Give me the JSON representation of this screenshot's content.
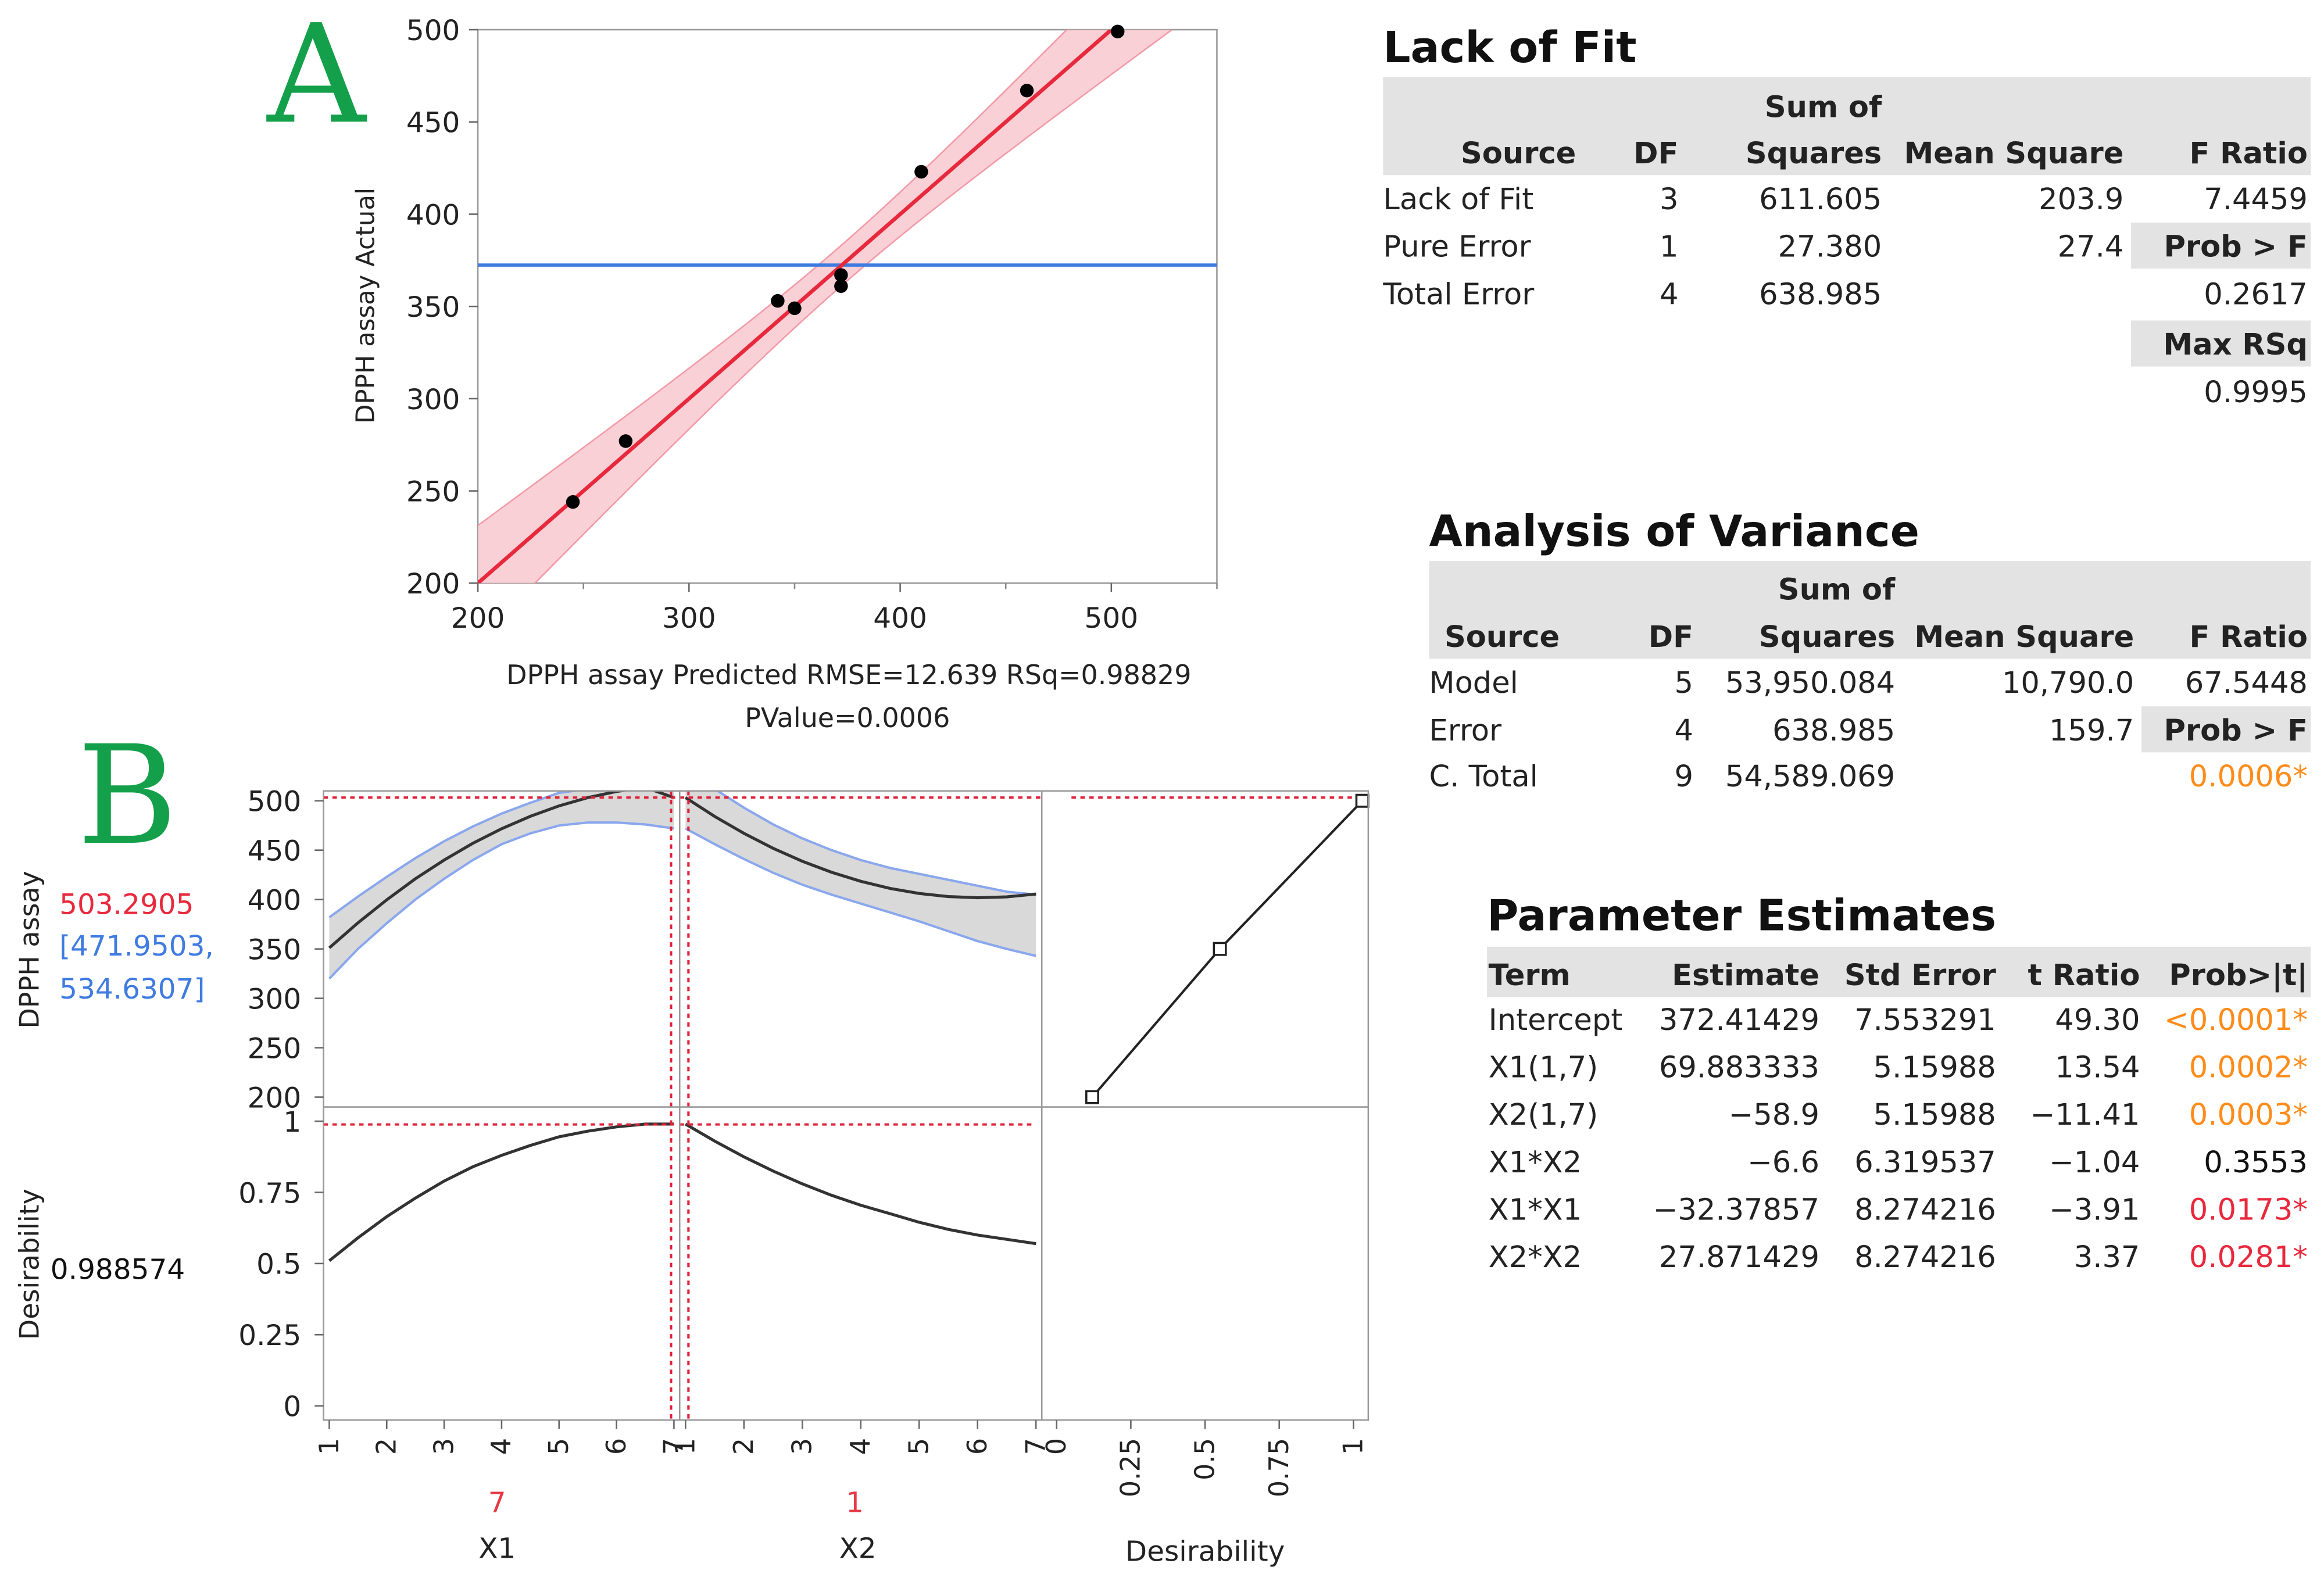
{
  "panel_a": {
    "letter": "A",
    "chart_data": {
      "type": "scatter",
      "title": "",
      "xlabel": "DPPH assay Predicted RMSE=12.639 RSq=0.98829",
      "xlabel2": "PValue=0.0006",
      "ylabel": "DPPH assay Actual",
      "xlim": [
        200,
        550
      ],
      "ylim": [
        200,
        500
      ],
      "xticks": [
        "200",
        "300",
        "400",
        "500"
      ],
      "yticks": [
        "200",
        "250",
        "300",
        "350",
        "400",
        "450",
        "500"
      ],
      "points": [
        {
          "x": 245,
          "y": 244
        },
        {
          "x": 270,
          "y": 277
        },
        {
          "x": 342,
          "y": 353
        },
        {
          "x": 350,
          "y": 349
        },
        {
          "x": 372,
          "y": 367
        },
        {
          "x": 372,
          "y": 361
        },
        {
          "x": 410,
          "y": 423
        },
        {
          "x": 460,
          "y": 467
        },
        {
          "x": 503,
          "y": 499
        }
      ],
      "fit_line": {
        "from": [
          200,
          200
        ],
        "to": [
          503,
          503
        ]
      },
      "mean_line_y": 372.4,
      "colors": {
        "points": "#000000",
        "fit": "#e8293d",
        "band": "#f8c8cf",
        "mean": "#3f7be0"
      }
    }
  },
  "panel_b": {
    "letter": "B",
    "response_label": "DPPH assay",
    "response_value": "503.2905",
    "ci_line1": "[471.9503,",
    "ci_line2": "534.6307]",
    "desirability_label": "Desirability",
    "desirability_value": "0.988574",
    "chart_data": {
      "type": "line",
      "response_axis": {
        "ylim": [
          190,
          510
        ],
        "yticks": [
          "200",
          "250",
          "300",
          "350",
          "400",
          "450",
          "500"
        ]
      },
      "desirability_axis": {
        "ylim": [
          -0.05,
          1.05
        ],
        "yticks": [
          "0",
          "0.25",
          "0.5",
          "0.75",
          "1"
        ]
      },
      "x1": {
        "label": "X1",
        "setting": "7",
        "xlim": [
          0.9,
          7.1
        ],
        "xticks": [
          "1",
          "2",
          "3",
          "4",
          "5",
          "6",
          "7"
        ],
        "x": [
          1,
          1.5,
          2,
          2.5,
          3,
          3.5,
          4,
          4.5,
          5,
          5.5,
          6,
          6.5,
          7
        ],
        "response": [
          351.1,
          376.5,
          399.8,
          421.0,
          440.0,
          456.9,
          471.7,
          484.3,
          494.8,
          503.2,
          509.4,
          513.5,
          503.3
        ],
        "response_lower": [
          320,
          350,
          376,
          400,
          421,
          440,
          456,
          467,
          475,
          478,
          478,
          476,
          472
        ],
        "response_upper": [
          382,
          403,
          423,
          442,
          459,
          474,
          487,
          498,
          508,
          512,
          514,
          516,
          534
        ],
        "desirability": [
          0.51,
          0.59,
          0.665,
          0.73,
          0.79,
          0.84,
          0.88,
          0.915,
          0.945,
          0.965,
          0.98,
          0.99,
          0.99
        ]
      },
      "x2": {
        "label": "X2",
        "setting": "1",
        "xlim": [
          0.9,
          7.1
        ],
        "xticks": [
          "1",
          "2",
          "3",
          "4",
          "5",
          "6",
          "7"
        ],
        "x": [
          1,
          1.5,
          2,
          2.5,
          3,
          3.5,
          4,
          4.5,
          5,
          5.5,
          6,
          6.5,
          7
        ],
        "response": [
          503.3,
          484.2,
          467.0,
          451.9,
          438.8,
          427.6,
          418.5,
          411.3,
          406.2,
          403.0,
          401.9,
          402.7,
          405.6
        ],
        "response_lower": [
          472,
          456,
          441,
          427,
          415,
          405,
          396,
          387,
          378,
          368,
          358,
          350,
          343
        ],
        "response_upper": [
          534,
          512,
          493,
          476,
          462,
          450,
          440,
          432,
          426,
          420,
          414,
          408,
          405
        ],
        "desirability": [
          0.99,
          0.93,
          0.875,
          0.825,
          0.78,
          0.74,
          0.705,
          0.675,
          0.645,
          0.62,
          0.6,
          0.585,
          0.57
        ]
      },
      "desirability_fn": {
        "label": "Desirability",
        "xlim": [
          -0.05,
          1.05
        ],
        "xticks": [
          "0",
          "0.25",
          "0.5",
          "0.75",
          "1"
        ],
        "points": [
          {
            "d": 0.12,
            "r": 200
          },
          {
            "d": 0.55,
            "r": 350
          },
          {
            "d": 1.03,
            "r": 500
          }
        ]
      },
      "colors": {
        "curve": "#333333",
        "ci": "#8aa7ee",
        "ci_fill": "#d9d9d9",
        "marker": "#e0223a",
        "setting": "#e63946"
      }
    }
  },
  "lack_of_fit": {
    "title": "Lack of Fit",
    "headers": {
      "source": "Source",
      "df": "DF",
      "ss1": "Sum of",
      "ss2": "Squares",
      "ms": "Mean Square",
      "f": "F Ratio"
    },
    "rows": [
      {
        "source": "Lack of Fit",
        "df": "3",
        "ss": "611.605",
        "ms": "203.9",
        "f": "7.4459"
      },
      {
        "source": "Pure Error",
        "df": "1",
        "ss": "27.380",
        "ms": "27.4",
        "f": "Prob > F"
      },
      {
        "source": "Total Error",
        "df": "4",
        "ss": "638.985",
        "ms": "",
        "f": "0.2617"
      }
    ],
    "maxrsq_label": "Max RSq",
    "maxrsq_value": "0.9995"
  },
  "anova": {
    "title": "Analysis of Variance",
    "headers": {
      "source": "Source",
      "df": "DF",
      "ss1": "Sum of",
      "ss2": "Squares",
      "ms": "Mean Square",
      "f": "F Ratio"
    },
    "rows": [
      {
        "source": "Model",
        "df": "5",
        "ss": "53,950.084",
        "ms": "10,790.0",
        "f": "67.5448"
      },
      {
        "source": "Error",
        "df": "4",
        "ss": "638.985",
        "ms": "159.7",
        "f": "Prob > F"
      },
      {
        "source": "C. Total",
        "df": "9",
        "ss": "54,589.069",
        "ms": "",
        "f": "0.0006*"
      }
    ]
  },
  "estimates": {
    "title": "Parameter Estimates",
    "headers": {
      "term": "Term",
      "est": "Estimate",
      "se": "Std Error",
      "t": "t Ratio",
      "p": "Prob>|t|"
    },
    "rows": [
      {
        "term": "Intercept",
        "est": "372.41429",
        "se": "7.553291",
        "t": "49.30",
        "p": "<0.0001*",
        "p_color": "#ff8c1a"
      },
      {
        "term": "X1(1,7)",
        "est": "69.883333",
        "se": "5.15988",
        "t": "13.54",
        "p": "0.0002*",
        "p_color": "#ff8c1a"
      },
      {
        "term": "X2(1,7)",
        "est": "−58.9",
        "se": "5.15988",
        "t": "−11.41",
        "p": "0.0003*",
        "p_color": "#ff8c1a"
      },
      {
        "term": "X1*X2",
        "est": "−6.6",
        "se": "6.319537",
        "t": "−1.04",
        "p": "0.3553",
        "p_color": "#111111"
      },
      {
        "term": "X1*X1",
        "est": "−32.37857",
        "se": "8.274216",
        "t": "−3.91",
        "p": "0.0173*",
        "p_color": "#e8293d"
      },
      {
        "term": "X2*X2",
        "est": "27.871429",
        "se": "8.274216",
        "t": "3.37",
        "p": "0.0281*",
        "p_color": "#e8293d"
      }
    ]
  }
}
